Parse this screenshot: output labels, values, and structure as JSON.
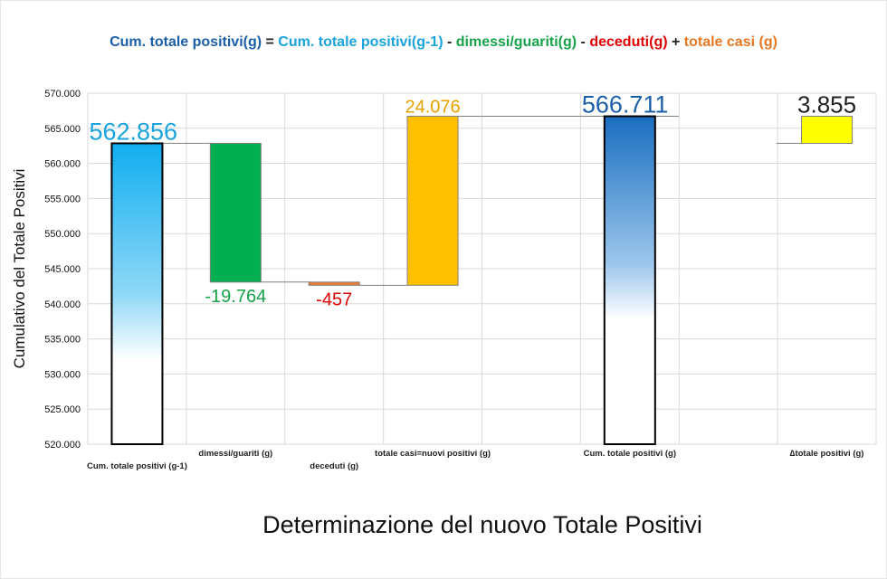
{
  "formula": {
    "t1": "Cum. totale positivi(g)",
    "t2": " = ",
    "t3": "Cum. totale positivi(g-1)",
    "t4": " - ",
    "t5": "dimessi/guariti(g)",
    "t6": " - ",
    "t7": "deceduti(g)",
    "t8": " + ",
    "t9": "totale casi (g)",
    "colors": {
      "blue": "#1a5fa8",
      "black": "#222222",
      "cyan": "#1aa3dc",
      "green": "#16a34a",
      "red": "#e00000",
      "orange": "#e87722"
    }
  },
  "chart_data": {
    "type": "bar",
    "subtype": "waterfall",
    "title": "Cum. totale positivi(g) = Cum. totale positivi(g-1) - dimessi/guariti(g) - deceduti(g) + totale casi (g)",
    "subtitle": "Determinazione del nuovo Totale Positivi",
    "ylabel": "Cumulativo del Totale Positivi",
    "xlabel": "",
    "ylim": [
      520000,
      570000
    ],
    "yticks": [
      "520.000",
      "525.000",
      "530.000",
      "535.000",
      "540.000",
      "545.000",
      "550.000",
      "555.000",
      "560.000",
      "565.000",
      "570.000"
    ],
    "grid": true,
    "legend": "none",
    "categories": [
      "Cum. totale positivi (g-1)",
      "dimessi/guariti (g)",
      "deceduti (g)",
      "totale casi=nuovi positivi (g)",
      "",
      "Cum. totale positivi (g)",
      "",
      "∆totale positivi (g)"
    ],
    "bars": [
      {
        "base": 520000,
        "top": 562856,
        "label": "562.856",
        "color": "#1ab0ef",
        "gradient": true,
        "labelColor": "#1aa3dc",
        "labelPos": "above"
      },
      {
        "base": 543092,
        "top": 562856,
        "label": "-19.764",
        "color": "#00b050",
        "labelColor": "#16a34a",
        "labelPos": "below"
      },
      {
        "base": 542635,
        "top": 543092,
        "label": "-457",
        "color": "#ed7d31",
        "labelColor": "#e00000",
        "labelPos": "below"
      },
      {
        "base": 542635,
        "top": 566711,
        "label": "24.076",
        "color": "#ffc000",
        "labelColor": "#e6a100",
        "labelPos": "above"
      },
      null,
      {
        "base": 520000,
        "top": 566711,
        "label": "566.711",
        "color": "#1a6ec0",
        "gradient": true,
        "labelColor": "#1a5fa8",
        "labelPos": "above"
      },
      null,
      {
        "base": 562856,
        "top": 566711,
        "label": "3.855",
        "color": "#ffff00",
        "labelColor": "#222222",
        "labelPos": "above"
      }
    ]
  }
}
